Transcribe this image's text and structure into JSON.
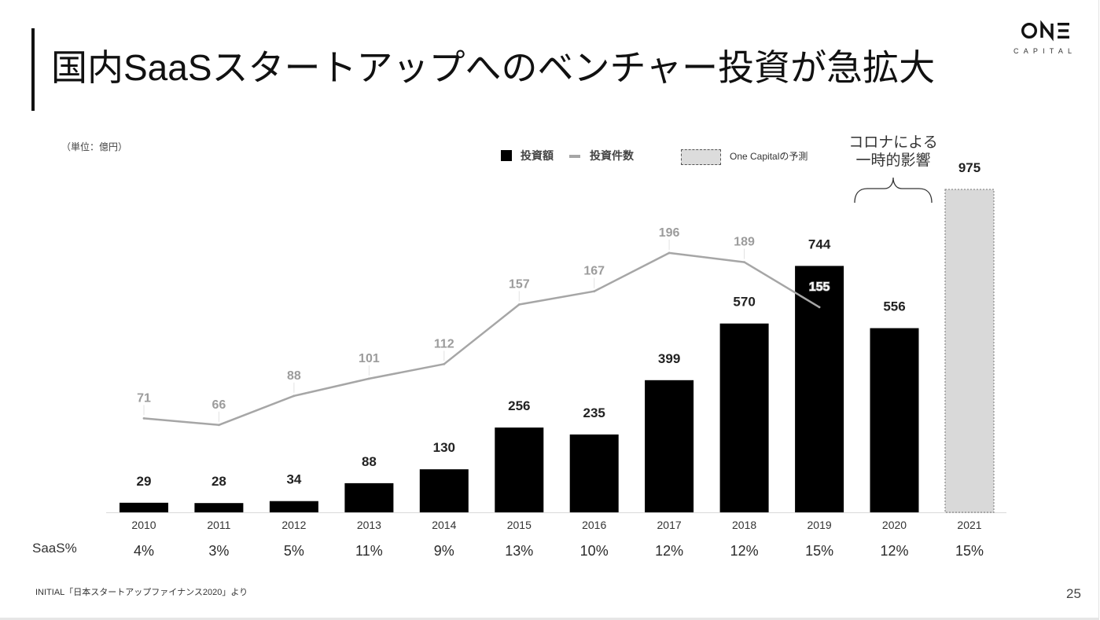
{
  "slide": {
    "title": "国内SaaSスタートアップへのベンチャー投資が急拡大",
    "unit_note": "（単位：億円）",
    "source": "INITIAL「日本スタートアップファイナンス2020」より",
    "page_number": "25"
  },
  "logo": {
    "word": "ONE",
    "sub": "CAPITAL"
  },
  "legend": {
    "bar": "投資額",
    "line": "投資件数",
    "forecast": "One Capitalの予測"
  },
  "annotation": {
    "line1": "コロナによる",
    "line2": "一時的影響"
  },
  "saas_row": {
    "label": "SaaS%"
  },
  "colors": {
    "bar": "#000000",
    "line": "#a6a6a6",
    "forecast_fill": "#d9d9d9",
    "forecast_border": "#777777",
    "axis": "#d9d9d9",
    "leader": "#e2e2e2",
    "brace": "#333333"
  },
  "chart_data": {
    "type": "bar",
    "categories": [
      "2010",
      "2011",
      "2012",
      "2013",
      "2014",
      "2015",
      "2016",
      "2017",
      "2018",
      "2019",
      "2020",
      "2021"
    ],
    "series": [
      {
        "name": "投資額",
        "type": "bar",
        "values": [
          29,
          28,
          34,
          88,
          130,
          256,
          235,
          399,
          570,
          744,
          556,
          975
        ]
      },
      {
        "name": "投資件数",
        "type": "line",
        "axis": "secondary",
        "values": [
          71,
          66,
          88,
          101,
          112,
          157,
          167,
          196,
          189,
          155,
          null,
          null
        ]
      }
    ],
    "forecast": [
      false,
      false,
      false,
      false,
      false,
      false,
      false,
      false,
      false,
      false,
      false,
      true
    ],
    "saas_share": [
      "4%",
      "3%",
      "5%",
      "11%",
      "9%",
      "13%",
      "10%",
      "12%",
      "12%",
      "15%",
      "12%",
      "15%"
    ],
    "ylim": [
      0,
      975
    ],
    "y2lim": [
      0,
      244
    ],
    "grid": false,
    "legend_position": "top"
  }
}
